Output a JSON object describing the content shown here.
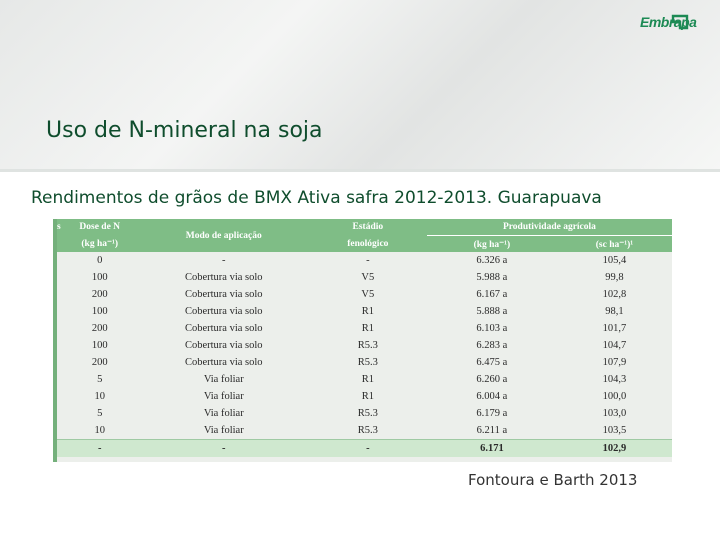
{
  "header": {
    "logo_text": "Embrapa",
    "brand_color": "#1c8a54"
  },
  "slide": {
    "title": "Uso de N-mineral na soja",
    "subtitle": "Rendimentos de grãos de BMX Ativa safra 2012-2013. Guarapuava",
    "source": "Fontoura e Barth 2013"
  },
  "table": {
    "headers": {
      "dose": "Dose de N",
      "dose_unit": "(kg ha⁻¹)",
      "mode": "Modo de aplicação",
      "stage": "Estádio",
      "stage2": "fenológico",
      "prod": "Produtividade agrícola",
      "kg": "(kg ha⁻¹)",
      "sc": "(sc ha⁻¹)¹"
    },
    "rows": [
      {
        "dose": "0",
        "mode": "-",
        "stage": "-",
        "kg": "6.326 a",
        "sc": "105,4"
      },
      {
        "dose": "100",
        "mode": "Cobertura via solo",
        "stage": "V5",
        "kg": "5.988 a",
        "sc": "99,8"
      },
      {
        "dose": "200",
        "mode": "Cobertura via solo",
        "stage": "V5",
        "kg": "6.167 a",
        "sc": "102,8"
      },
      {
        "dose": "100",
        "mode": "Cobertura via solo",
        "stage": "R1",
        "kg": "5.888 a",
        "sc": "98,1"
      },
      {
        "dose": "200",
        "mode": "Cobertura via solo",
        "stage": "R1",
        "kg": "6.103 a",
        "sc": "101,7"
      },
      {
        "dose": "100",
        "mode": "Cobertura via solo",
        "stage": "R5.3",
        "kg": "6.283 a",
        "sc": "104,7"
      },
      {
        "dose": "200",
        "mode": "Cobertura via solo",
        "stage": "R5.3",
        "kg": "6.475 a",
        "sc": "107,9"
      },
      {
        "dose": "5",
        "mode": "Via foliar",
        "stage": "R1",
        "kg": "6.260 a",
        "sc": "104,3"
      },
      {
        "dose": "10",
        "mode": "Via foliar",
        "stage": "R1",
        "kg": "6.004 a",
        "sc": "100,0"
      },
      {
        "dose": "5",
        "mode": "Via foliar",
        "stage": "R5.3",
        "kg": "6.179 a",
        "sc": "103,0"
      },
      {
        "dose": "10",
        "mode": "Via foliar",
        "stage": "R5.3",
        "kg": "6.211 a",
        "sc": "103,5"
      }
    ],
    "total": {
      "dose": "-",
      "mode": "-",
      "stage": "-",
      "kg": "6.171",
      "sc": "102,9"
    }
  }
}
